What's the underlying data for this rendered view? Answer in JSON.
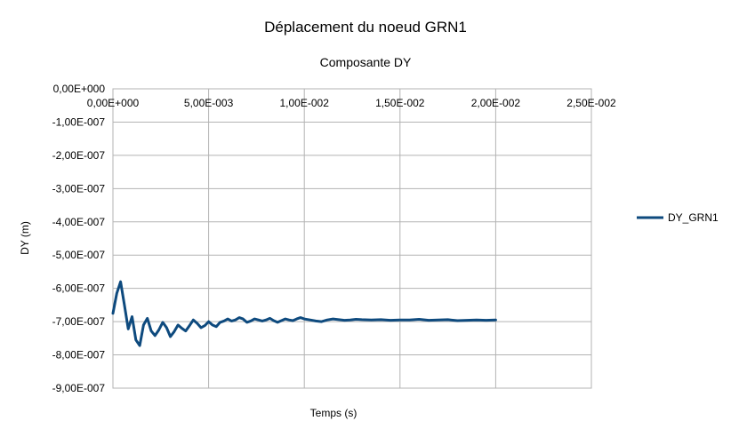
{
  "chart_data": {
    "type": "line",
    "title": "Déplacement du noeud GRN1",
    "subtitle": "Composante DY",
    "xlabel": "Temps (s)",
    "ylabel": "DY (m)",
    "xlim": [
      0,
      0.025
    ],
    "ylim": [
      -9e-07,
      0
    ],
    "x_ticks": [
      0,
      0.005,
      0.01,
      0.015,
      0.02,
      0.025
    ],
    "x_tick_labels": [
      "0,00E+000",
      "5,00E-003",
      "1,00E-002",
      "1,50E-002",
      "2,00E-002",
      "2,50E-002"
    ],
    "y_ticks": [
      0,
      -1e-07,
      -2e-07,
      -3e-07,
      -4e-07,
      -5e-07,
      -6e-07,
      -7e-07,
      -8e-07,
      -9e-07
    ],
    "y_tick_labels": [
      "0,00E+000",
      "-1,00E-007",
      "-2,00E-007",
      "-3,00E-007",
      "-4,00E-007",
      "-5,00E-007",
      "-6,00E-007",
      "-7,00E-007",
      "-8,00E-007",
      "-9,00E-007"
    ],
    "grid": true,
    "legend_position": "right",
    "series": [
      {
        "name": "DY_GRN1",
        "color": "#0e4a7e",
        "x": [
          0,
          0.0002,
          0.0004,
          0.0006,
          0.0008,
          0.001,
          0.0012,
          0.0014,
          0.0016,
          0.0018,
          0.002,
          0.0022,
          0.0024,
          0.0026,
          0.0028,
          0.003,
          0.0032,
          0.0034,
          0.0036,
          0.0038,
          0.004,
          0.0042,
          0.0044,
          0.0046,
          0.0048,
          0.005,
          0.0052,
          0.0054,
          0.0056,
          0.0058,
          0.006,
          0.0062,
          0.0064,
          0.0066,
          0.0068,
          0.007,
          0.0072,
          0.0074,
          0.0076,
          0.0078,
          0.008,
          0.0082,
          0.0084,
          0.0086,
          0.0088,
          0.009,
          0.0092,
          0.0094,
          0.0096,
          0.0098,
          0.01,
          0.0103,
          0.0106,
          0.0109,
          0.0112,
          0.0115,
          0.0118,
          0.0121,
          0.0124,
          0.0127,
          0.013,
          0.0135,
          0.014,
          0.0145,
          0.015,
          0.0155,
          0.016,
          0.0165,
          0.017,
          0.0175,
          0.018,
          0.0185,
          0.019,
          0.0195,
          0.02
        ],
        "values": [
          -6.75e-07,
          -6.15e-07,
          -5.8e-07,
          -6.5e-07,
          -7.22e-07,
          -6.85e-07,
          -7.55e-07,
          -7.72e-07,
          -7.1e-07,
          -6.9e-07,
          -7.28e-07,
          -7.42e-07,
          -7.25e-07,
          -7.02e-07,
          -7.18e-07,
          -7.45e-07,
          -7.3e-07,
          -7.1e-07,
          -7.2e-07,
          -7.28e-07,
          -7.12e-07,
          -6.95e-07,
          -7.05e-07,
          -7.18e-07,
          -7.12e-07,
          -7e-07,
          -7.1e-07,
          -7.15e-07,
          -7.02e-07,
          -6.98e-07,
          -6.92e-07,
          -6.98e-07,
          -6.95e-07,
          -6.88e-07,
          -6.92e-07,
          -7.02e-07,
          -6.98e-07,
          -6.92e-07,
          -6.95e-07,
          -6.98e-07,
          -6.95e-07,
          -6.9e-07,
          -6.97e-07,
          -7.02e-07,
          -6.97e-07,
          -6.92e-07,
          -6.95e-07,
          -6.97e-07,
          -6.92e-07,
          -6.88e-07,
          -6.92e-07,
          -6.95e-07,
          -6.98e-07,
          -7e-07,
          -6.95e-07,
          -6.92e-07,
          -6.94e-07,
          -6.96e-07,
          -6.95e-07,
          -6.93e-07,
          -6.94e-07,
          -6.95e-07,
          -6.94e-07,
          -6.96e-07,
          -6.95e-07,
          -6.95e-07,
          -6.93e-07,
          -6.96e-07,
          -6.95e-07,
          -6.94e-07,
          -6.97e-07,
          -6.96e-07,
          -6.95e-07,
          -6.96e-07,
          -6.95e-07
        ]
      }
    ]
  }
}
